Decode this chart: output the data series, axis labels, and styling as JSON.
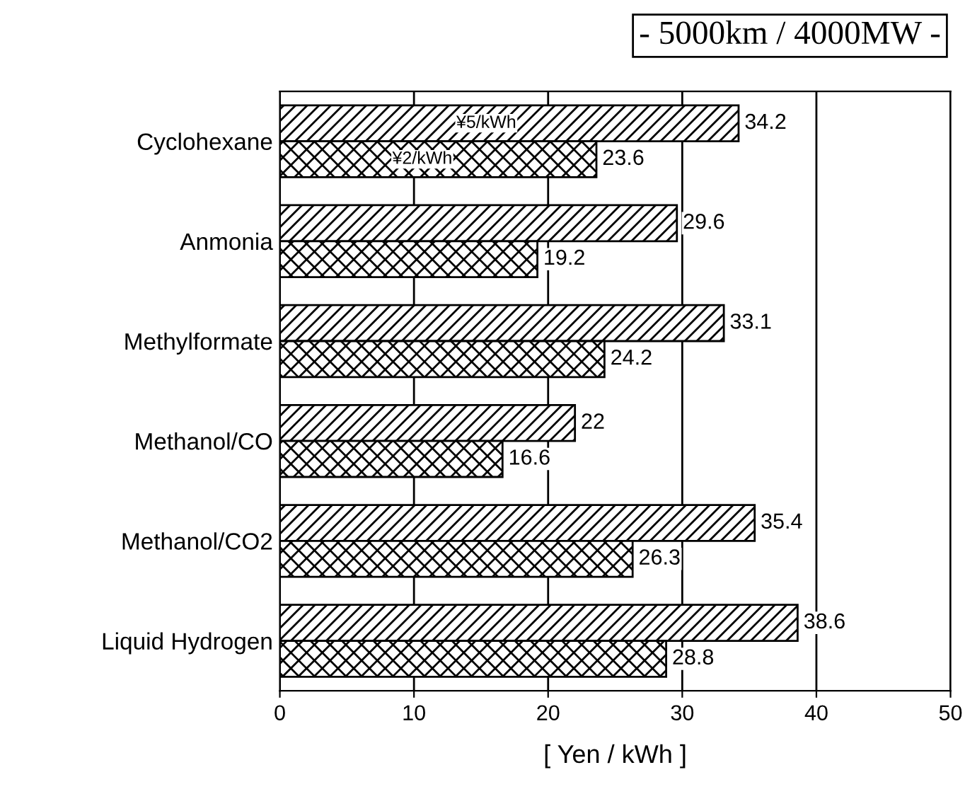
{
  "chart_data": {
    "type": "bar",
    "orientation": "horizontal",
    "title": "- 5000km / 4000MW -",
    "xlabel": "[ Yen / kWh ]",
    "categories": [
      "Cyclohexane",
      "Anmonia",
      "Methylformate",
      "Methanol/CO",
      "Methanol/CO2",
      "Liquid Hydrogen"
    ],
    "series": [
      {
        "name": "¥5/kWh",
        "color": "#000000",
        "values": [
          34.2,
          29.6,
          33.1,
          22,
          35.4,
          38.6
        ]
      },
      {
        "name": "¥2/kWh",
        "color": "#000000",
        "values": [
          23.6,
          19.2,
          24.2,
          16.6,
          26.3,
          28.8
        ]
      }
    ],
    "xlim": [
      0,
      50
    ],
    "xticks": [
      0,
      10,
      20,
      30,
      40,
      50
    ],
    "grid": "x",
    "legend": false,
    "data_labels": true
  }
}
